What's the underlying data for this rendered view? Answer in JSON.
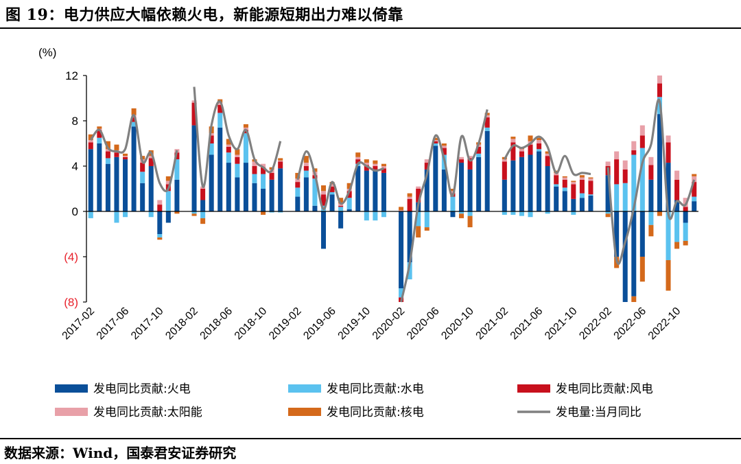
{
  "header": {
    "title": "图 19：电力供应大幅依赖火电，新能源短期出力难以倚靠"
  },
  "footer": {
    "source": "数据来源：Wind，国泰君安证券研究"
  },
  "chart_data": {
    "type": "bar",
    "unit_label": "(%)",
    "stacked": true,
    "ylim": [
      -8,
      12
    ],
    "y_ticks": [
      {
        "value": 12,
        "label": "12",
        "color": "#000000"
      },
      {
        "value": 8,
        "label": "8",
        "color": "#000000"
      },
      {
        "value": 4,
        "label": "4",
        "color": "#000000"
      },
      {
        "value": 0,
        "label": "0",
        "color": "#000000"
      },
      {
        "value": -4,
        "label": "(4)",
        "color": "#e8202a"
      },
      {
        "value": -8,
        "label": "(8)",
        "color": "#e8202a"
      }
    ],
    "categories": [
      "2017-02",
      "2017-03",
      "2017-04",
      "2017-05",
      "2017-06",
      "2017-07",
      "2017-08",
      "2017-09",
      "2017-10",
      "2017-11",
      "2017-12",
      "2018-01",
      "2018-02",
      "2018-03",
      "2018-04",
      "2018-05",
      "2018-06",
      "2018-07",
      "2018-08",
      "2018-09",
      "2018-10",
      "2018-11",
      "2018-12",
      "2019-01",
      "2019-02",
      "2019-03",
      "2019-04",
      "2019-05",
      "2019-06",
      "2019-07",
      "2019-08",
      "2019-09",
      "2019-10",
      "2019-11",
      "2019-12",
      "2020-01",
      "2020-02",
      "2020-03",
      "2020-04",
      "2020-05",
      "2020-06",
      "2020-07",
      "2020-08",
      "2020-09",
      "2020-10",
      "2020-11",
      "2020-12",
      "2021-01",
      "2021-02",
      "2021-03",
      "2021-04",
      "2021-05",
      "2021-06",
      "2021-07",
      "2021-08",
      "2021-09",
      "2021-10",
      "2021-11",
      "2021-12",
      "2022-01",
      "2022-02",
      "2022-03",
      "2022-04",
      "2022-05",
      "2022-06",
      "2022-07",
      "2022-08",
      "2022-09",
      "2022-10",
      "2022-11",
      "2022-12"
    ],
    "x_tick_labels": [
      "2017-02",
      "2017-06",
      "2017-10",
      "2018-02",
      "2018-06",
      "2018-10",
      "2019-02",
      "2019-06",
      "2019-10",
      "2020-02",
      "2020-06",
      "2020-10",
      "2021-02",
      "2021-06",
      "2021-10",
      "2022-02",
      "2022-06",
      "2022-10"
    ],
    "series": [
      {
        "name": "发电同比贡献:火电",
        "kind": "bar",
        "color": "#0a4f99",
        "values": [
          5.5,
          6.0,
          4.2,
          4.8,
          4.6,
          7.5,
          2.5,
          4.0,
          -2.0,
          -1.0,
          2.8,
          null,
          7.6,
          1.0,
          5.0,
          7.4,
          4.3,
          3.0,
          4.3,
          2.5,
          2.0,
          2.8,
          3.8,
          null,
          1.3,
          3.0,
          0.5,
          -3.3,
          1.5,
          -1.5,
          0.2,
          4.0,
          3.6,
          3.7,
          3.4,
          null,
          -6.8,
          -4.5,
          0.8,
          3.7,
          5.8,
          3.7,
          -0.5,
          4.3,
          3.7,
          4.8,
          7.1,
          null,
          2.8,
          4.5,
          4.8,
          5.0,
          5.3,
          4.0,
          2.2,
          1.8,
          1.1,
          1.2,
          1.4,
          null,
          3.2,
          -4.0,
          -8.0,
          -7.5,
          -4.0,
          2.8,
          8.6,
          4.3,
          1.0,
          -1.0,
          0.9
        ]
      },
      {
        "name": "发电同比贡献:水电",
        "kind": "bar",
        "color": "#5bc2ef",
        "values": [
          -0.6,
          0.5,
          0.5,
          -1.0,
          -0.5,
          0.4,
          1.0,
          -0.5,
          -0.3,
          1.8,
          1.8,
          null,
          -0.2,
          -0.6,
          1.0,
          1.3,
          0.9,
          1.2,
          2.6,
          0.8,
          1.3,
          -0.1,
          -0.1,
          null,
          0.8,
          0.6,
          2.4,
          0.5,
          0.2,
          0.4,
          1.0,
          0.2,
          -0.8,
          -0.8,
          -0.5,
          null,
          -0.8,
          -1.5,
          -1.3,
          -1.4,
          0.2,
          1.3,
          1.3,
          -0.2,
          -0.4,
          0.3,
          0.3,
          null,
          -0.3,
          -0.3,
          -0.4,
          -0.5,
          0.2,
          -0.2,
          0.2,
          0.3,
          -0.3,
          0.4,
          0.1,
          null,
          -0.2,
          2.4,
          2.5,
          5.0,
          5.6,
          -1.2,
          1.5,
          -4.3,
          -2.7,
          -1.6,
          0.4
        ]
      },
      {
        "name": "发电同比贡献:风电",
        "kind": "bar",
        "color": "#c8101d",
        "values": [
          0.6,
          0.7,
          0.6,
          0.4,
          0.2,
          0.4,
          0.8,
          0.7,
          0.6,
          0.6,
          0.6,
          null,
          2.0,
          1.0,
          0.7,
          0.7,
          0.5,
          0.6,
          0.3,
          0.7,
          0.6,
          0.6,
          0.6,
          null,
          0.5,
          0.4,
          0.3,
          1.0,
          0.5,
          0.1,
          0.6,
          0.4,
          0.5,
          0.3,
          0.4,
          null,
          -0.5,
          1.1,
          1.2,
          0.6,
          0.2,
          0.6,
          0.3,
          0.3,
          1.0,
          0.6,
          0.9,
          null,
          1.6,
          1.6,
          0.5,
          0.9,
          0.5,
          0.9,
          0.8,
          0.7,
          1.3,
          1.2,
          1.2,
          null,
          0.8,
          2.2,
          1.2,
          0.4,
          1.1,
          1.3,
          1.2,
          1.8,
          1.8,
          0.4,
          1.3
        ]
      },
      {
        "name": "发电同比贡献:太阳能",
        "kind": "bar",
        "color": "#e8a0a8",
        "values": [
          0.2,
          0.1,
          0.2,
          0.2,
          0.1,
          0.2,
          0.3,
          0.2,
          0.4,
          0.3,
          0.3,
          null,
          0.2,
          0.2,
          0.2,
          0.2,
          0.2,
          0.2,
          0.2,
          0.4,
          0.3,
          0.3,
          0.1,
          null,
          0.3,
          0.3,
          0.3,
          0.3,
          0.2,
          0.2,
          0.2,
          0.2,
          0.2,
          0.2,
          0.2,
          null,
          0.1,
          0.2,
          0.2,
          0.3,
          0.1,
          0.2,
          0.2,
          0.2,
          0.2,
          0.2,
          0.2,
          null,
          0.2,
          0.3,
          0.2,
          0.3,
          0.3,
          0.2,
          0.2,
          0.2,
          0.2,
          0.2,
          0.2,
          null,
          0.4,
          0.7,
          0.8,
          0.8,
          0.9,
          0.7,
          0.9,
          0.6,
          0.8,
          0.8,
          0.5
        ]
      },
      {
        "name": "发电同比贡献:核电",
        "kind": "bar",
        "color": "#d4691b",
        "values": [
          0.5,
          0.2,
          0.7,
          0.5,
          0.2,
          0.6,
          0.3,
          0.5,
          -0.2,
          0.4,
          -0.2,
          null,
          -0.2,
          -0.5,
          0.6,
          0.3,
          0.5,
          0.5,
          0.3,
          0.2,
          -0.3,
          0.2,
          0.2,
          null,
          0.5,
          0.6,
          0.3,
          0.5,
          0.2,
          0.5,
          0.5,
          0.4,
          0.3,
          0.3,
          0.2,
          null,
          0.3,
          0.3,
          -1.0,
          -0.3,
          0.2,
          0.2,
          0.2,
          -0.4,
          -1.0,
          0.2,
          0.2,
          null,
          0.2,
          0.2,
          0.2,
          0.5,
          0.2,
          0.2,
          0.2,
          0.1,
          0.1,
          0.2,
          0.1,
          null,
          -0.3,
          -1.0,
          -0.5,
          -0.5,
          -2.2,
          -1.0,
          -0.4,
          -2.7,
          -0.6,
          -0.4,
          0.2
        ]
      },
      {
        "name": "发电量:当月同比",
        "kind": "line",
        "color": "#808080",
        "values": [
          6.3,
          7.2,
          5.6,
          5.3,
          5.5,
          8.5,
          4.4,
          5.2,
          2.5,
          2.0,
          5.4,
          null,
          11.0,
          2.2,
          7.6,
          9.7,
          6.7,
          5.5,
          7.2,
          4.6,
          3.9,
          3.6,
          6.2,
          null,
          2.8,
          5.3,
          3.3,
          0.2,
          2.6,
          0.7,
          1.8,
          4.2,
          4.0,
          3.6,
          3.8,
          null,
          -8.2,
          -4.6,
          0.6,
          3.3,
          6.7,
          4.6,
          1.4,
          6.6,
          4.5,
          6.0,
          9.0,
          null,
          4.6,
          5.8,
          5.6,
          6.0,
          6.6,
          5.7,
          3.4,
          4.9,
          3.3,
          3.4,
          3.3,
          null,
          3.9,
          -4.3,
          -2.7,
          0.3,
          4.3,
          5.9,
          9.7,
          -0.2,
          0.9,
          0.6,
          2.8
        ]
      }
    ],
    "legend": [
      "发电同比贡献:火电",
      "发电同比贡献:水电",
      "发电同比贡献:风电",
      "发电同比贡献:太阳能",
      "发电同比贡献:核电",
      "发电量:当月同比"
    ],
    "legend_placement": "bottom",
    "grid": false
  }
}
